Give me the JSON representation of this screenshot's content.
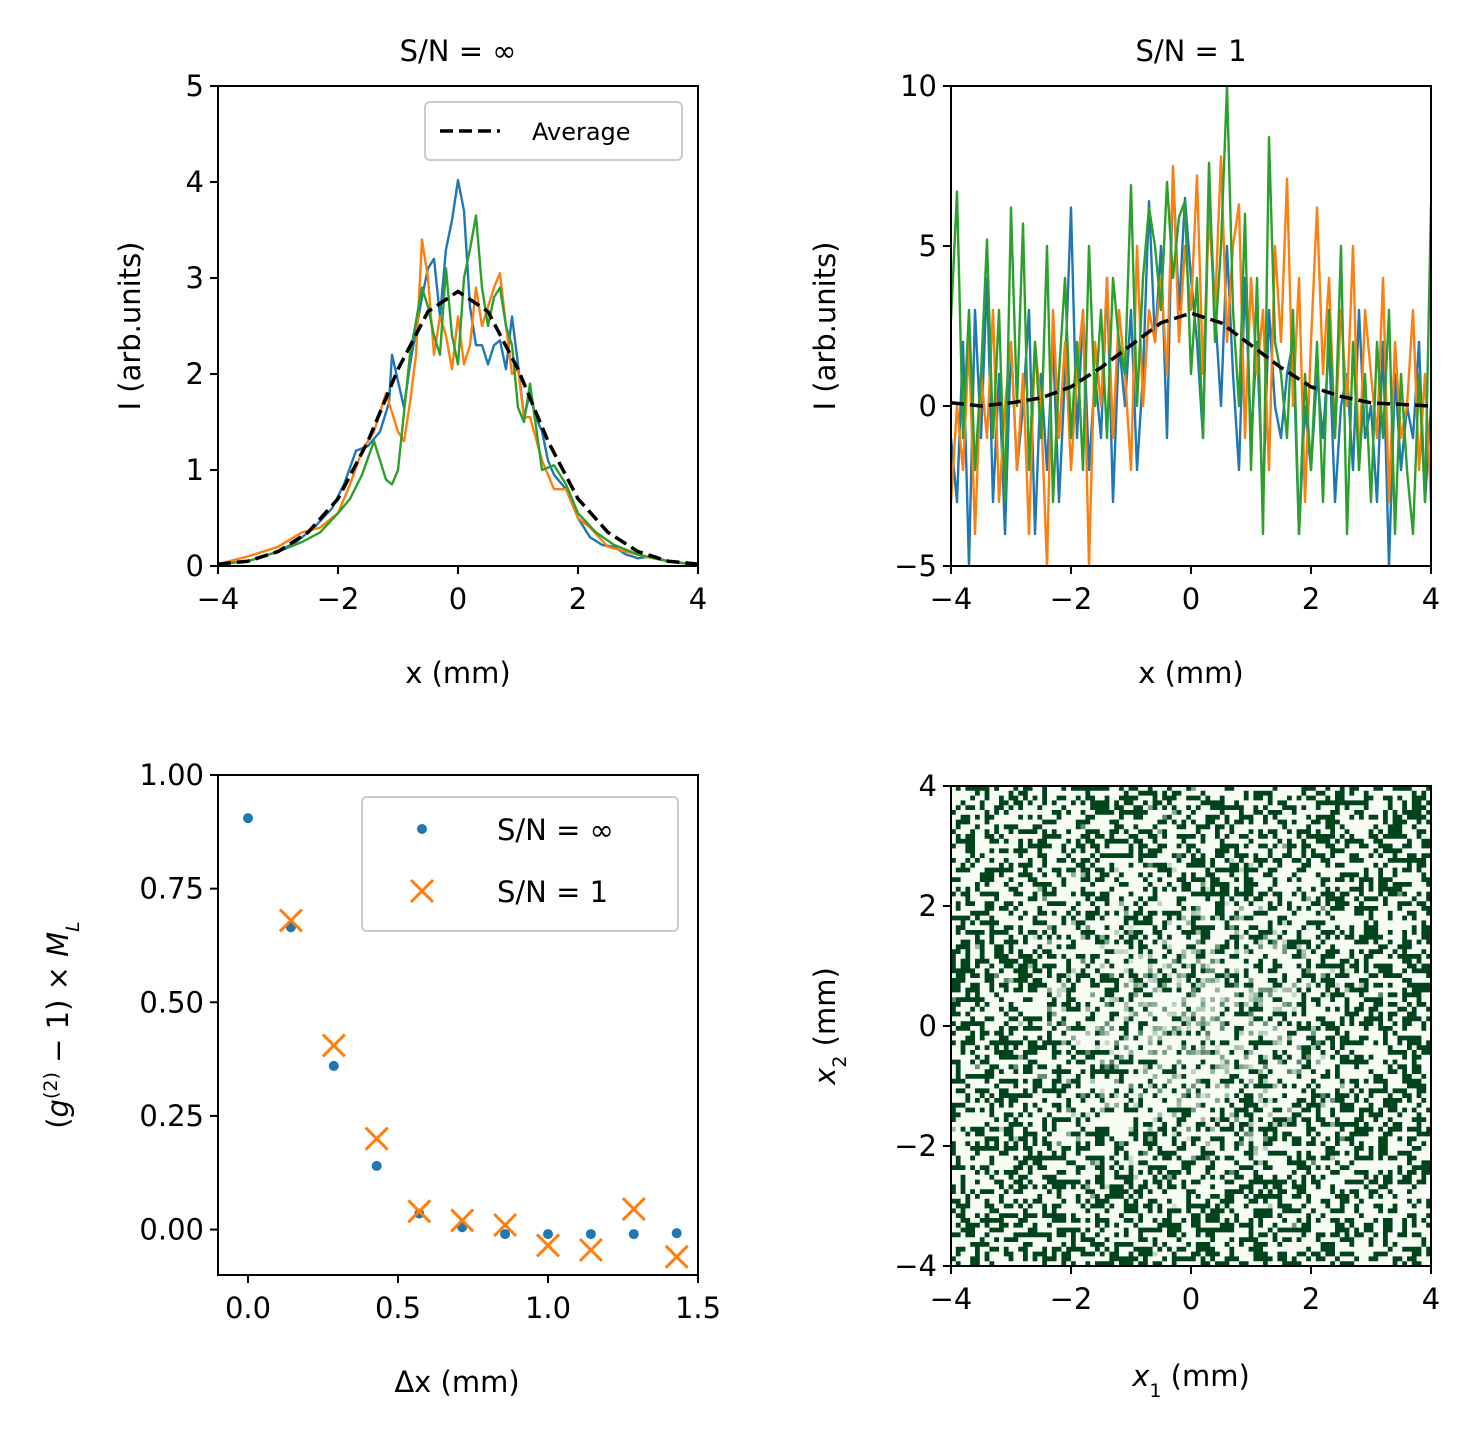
{
  "chart_data": [
    {
      "type": "line",
      "title": "S/N = ∞",
      "xlabel": "x (mm)",
      "ylabel": "I (arb.units)",
      "xlim": [
        -4,
        4
      ],
      "ylim": [
        0,
        5
      ],
      "xticks": [
        -4,
        -2,
        0,
        2,
        4
      ],
      "yticks": [
        0,
        1,
        2,
        3,
        4,
        5
      ],
      "legend": {
        "placement": "top-right",
        "entries": [
          "Average"
        ]
      },
      "series": [
        {
          "color": "#1f77b4",
          "x": [
            -4,
            -3.5,
            -3,
            -2.7,
            -2.4,
            -2.1,
            -1.9,
            -1.7,
            -1.5,
            -1.3,
            -1.15,
            -1.1,
            -0.9,
            -0.8,
            -0.7,
            -0.6,
            -0.5,
            -0.4,
            -0.3,
            -0.2,
            -0.1,
            0,
            0.1,
            0.2,
            0.3,
            0.4,
            0.5,
            0.6,
            0.7,
            0.8,
            0.9,
            1.0,
            1.1,
            1.2,
            1.3,
            1.4,
            1.5,
            1.6,
            1.8,
            2.0,
            2.2,
            2.4,
            2.6,
            2.8,
            3.0,
            3.2,
            3.5,
            4.0
          ],
          "y": [
            0.02,
            0.05,
            0.15,
            0.25,
            0.4,
            0.6,
            0.85,
            1.2,
            1.25,
            1.4,
            1.7,
            2.2,
            1.65,
            2.1,
            2.45,
            2.8,
            3.1,
            3.2,
            2.6,
            3.3,
            3.6,
            4.02,
            3.7,
            2.7,
            2.3,
            2.3,
            2.1,
            2.3,
            2.35,
            2.05,
            2.6,
            2.1,
            1.55,
            1.8,
            1.55,
            1.4,
            1.1,
            0.95,
            0.8,
            0.5,
            0.3,
            0.22,
            0.2,
            0.12,
            0.08,
            0.1,
            0.05,
            0.01
          ]
        },
        {
          "color": "#ff7f0e",
          "x": [
            -4,
            -3.5,
            -3,
            -2.6,
            -2.3,
            -2.0,
            -1.8,
            -1.6,
            -1.4,
            -1.2,
            -1.0,
            -0.9,
            -0.8,
            -0.7,
            -0.6,
            -0.5,
            -0.4,
            -0.3,
            -0.2,
            -0.1,
            0,
            0.1,
            0.2,
            0.3,
            0.4,
            0.5,
            0.6,
            0.7,
            0.8,
            0.9,
            1.0,
            1.1,
            1.2,
            1.4,
            1.6,
            1.8,
            2.0,
            2.2,
            2.5,
            2.8,
            3.1,
            3.5,
            4.0
          ],
          "y": [
            0.02,
            0.1,
            0.2,
            0.35,
            0.4,
            0.55,
            0.85,
            1.2,
            1.4,
            1.8,
            1.4,
            1.3,
            1.7,
            2.2,
            3.4,
            3.0,
            2.2,
            2.6,
            2.4,
            2.05,
            2.6,
            2.1,
            2.3,
            2.9,
            2.5,
            2.7,
            2.9,
            3.05,
            2.5,
            2.0,
            2.05,
            1.55,
            1.55,
            1.1,
            0.8,
            0.8,
            0.5,
            0.4,
            0.2,
            0.15,
            0.1,
            0.05,
            0.01
          ]
        },
        {
          "color": "#2ca02c",
          "x": [
            -4,
            -3.5,
            -3,
            -2.6,
            -2.3,
            -2.0,
            -1.8,
            -1.6,
            -1.4,
            -1.2,
            -1.1,
            -1.0,
            -0.9,
            -0.8,
            -0.7,
            -0.6,
            -0.5,
            -0.4,
            -0.3,
            -0.2,
            -0.1,
            0,
            0.1,
            0.2,
            0.3,
            0.4,
            0.5,
            0.6,
            0.7,
            0.8,
            0.9,
            1.0,
            1.1,
            1.2,
            1.4,
            1.6,
            1.8,
            2.0,
            2.3,
            2.6,
            3.0,
            3.5,
            4.0
          ],
          "y": [
            0.02,
            0.05,
            0.15,
            0.25,
            0.35,
            0.55,
            0.7,
            0.95,
            1.3,
            0.9,
            0.85,
            1.0,
            1.6,
            2.2,
            2.55,
            2.9,
            2.7,
            2.4,
            2.2,
            3.1,
            2.4,
            2.1,
            3.0,
            3.3,
            3.65,
            2.9,
            2.5,
            2.8,
            2.9,
            2.5,
            2.3,
            1.65,
            1.5,
            1.9,
            1.0,
            1.05,
            0.85,
            0.55,
            0.35,
            0.22,
            0.12,
            0.05,
            0.01
          ]
        },
        {
          "name": "Average",
          "color": "#000000",
          "dashed": true,
          "x": [
            -4,
            -3.5,
            -3,
            -2.5,
            -2,
            -1.5,
            -1,
            -0.5,
            0,
            0.5,
            1,
            1.5,
            2,
            2.5,
            3,
            3.5,
            4
          ],
          "y": [
            0.02,
            0.05,
            0.15,
            0.35,
            0.7,
            1.3,
            2.05,
            2.65,
            2.86,
            2.65,
            2.05,
            1.3,
            0.7,
            0.35,
            0.15,
            0.05,
            0.02
          ]
        }
      ]
    },
    {
      "type": "line",
      "title": "S/N = 1",
      "xlabel": "x (mm)",
      "ylabel": "I  (arb.units)",
      "xlim": [
        -4,
        4
      ],
      "ylim": [
        -5,
        10
      ],
      "xticks": [
        -4,
        -2,
        0,
        2,
        4
      ],
      "yticks": [
        -5,
        0,
        5,
        10
      ],
      "series": [
        {
          "color": "#1f77b4",
          "x": [
            -4,
            -3.9,
            -3.8,
            -3.7,
            -3.6,
            -3.5,
            -3.4,
            -3.3,
            -3.2,
            -3.1,
            -3.0,
            -2.9,
            -2.8,
            -2.7,
            -2.6,
            -2.5,
            -2.4,
            -2.3,
            -2.2,
            -2.1,
            -2.0,
            -1.9,
            -1.8,
            -1.7,
            -1.6,
            -1.5,
            -1.4,
            -1.3,
            -1.2,
            -1.1,
            -1.0,
            -0.9,
            -0.8,
            -0.7,
            -0.6,
            -0.5,
            -0.4,
            -0.3,
            -0.2,
            -0.1,
            0,
            0.1,
            0.2,
            0.3,
            0.4,
            0.5,
            0.6,
            0.7,
            0.8,
            0.9,
            1.0,
            1.1,
            1.2,
            1.3,
            1.4,
            1.5,
            1.6,
            1.7,
            1.8,
            1.9,
            2.0,
            2.1,
            2.2,
            2.3,
            2.4,
            2.5,
            2.6,
            2.7,
            2.8,
            2.9,
            3.0,
            3.1,
            3.2,
            3.3,
            3.4,
            3.5,
            3.6,
            3.7,
            3.8,
            3.9,
            4.0
          ],
          "y": [
            -1,
            -3,
            2,
            -5,
            3,
            -1,
            4,
            -3,
            1,
            -4,
            2,
            -2,
            0,
            3,
            -4,
            1,
            -2,
            2,
            -3,
            1,
            6.2,
            -1,
            3,
            -2,
            1,
            -1,
            4,
            -3,
            2,
            0,
            3,
            -2,
            1,
            6.4,
            2,
            5,
            -1,
            7.4,
            3,
            6.5,
            4,
            2,
            -1,
            6.8,
            3,
            0,
            5,
            1,
            -2,
            4,
            -1,
            2,
            -3,
            3,
            0,
            -1,
            1,
            2,
            -4,
            0,
            -2,
            1,
            -1,
            2,
            -3,
            0,
            1,
            -2,
            3,
            -1,
            0,
            -3,
            2,
            -5,
            1,
            -2,
            0,
            -1,
            2,
            -3,
            0
          ]
        },
        {
          "color": "#ff7f0e",
          "x": [
            -4,
            -3.9,
            -3.8,
            -3.7,
            -3.6,
            -3.5,
            -3.4,
            -3.3,
            -3.2,
            -3.1,
            -3.0,
            -2.9,
            -2.8,
            -2.7,
            -2.6,
            -2.5,
            -2.4,
            -2.3,
            -2.2,
            -2.1,
            -2.0,
            -1.9,
            -1.8,
            -1.7,
            -1.6,
            -1.5,
            -1.4,
            -1.3,
            -1.2,
            -1.1,
            -1.0,
            -0.9,
            -0.8,
            -0.7,
            -0.6,
            -0.5,
            -0.4,
            -0.3,
            -0.2,
            -0.1,
            0,
            0.1,
            0.2,
            0.3,
            0.4,
            0.5,
            0.6,
            0.7,
            0.8,
            0.9,
            1.0,
            1.1,
            1.2,
            1.3,
            1.4,
            1.5,
            1.6,
            1.7,
            1.8,
            1.9,
            2.0,
            2.1,
            2.2,
            2.3,
            2.4,
            2.5,
            2.6,
            2.7,
            2.8,
            2.9,
            3.0,
            3.1,
            3.2,
            3.3,
            3.4,
            3.5,
            3.6,
            3.7,
            3.8,
            3.9,
            4.0
          ],
          "y": [
            -3,
            0,
            -2,
            2,
            -4,
            1,
            -1,
            3,
            -3,
            0,
            2,
            -2,
            1,
            -4,
            2,
            0,
            -5,
            3,
            -1,
            2,
            -2,
            1,
            3,
            -5,
            2,
            0,
            4,
            -1,
            3,
            1,
            -2,
            5,
            0,
            3,
            2,
            4,
            1,
            7.5,
            2,
            5,
            3,
            7.2,
            1,
            6,
            3,
            7.8,
            2,
            5,
            6.3,
            -1,
            4,
            1,
            3,
            -2,
            5,
            2,
            7.1,
            0,
            4,
            -3,
            2,
            6.2,
            1,
            4,
            -1,
            3,
            0,
            5,
            -2,
            3,
            1,
            -1,
            4,
            -3,
            2,
            -1,
            0,
            3,
            -2,
            1,
            -3
          ]
        },
        {
          "color": "#2ca02c",
          "x": [
            -4,
            -3.9,
            -3.8,
            -3.7,
            -3.6,
            -3.5,
            -3.4,
            -3.3,
            -3.2,
            -3.1,
            -3.0,
            -2.9,
            -2.8,
            -2.7,
            -2.6,
            -2.5,
            -2.4,
            -2.3,
            -2.2,
            -2.1,
            -2.0,
            -1.9,
            -1.8,
            -1.7,
            -1.6,
            -1.5,
            -1.4,
            -1.3,
            -1.2,
            -1.1,
            -1.0,
            -0.9,
            -0.8,
            -0.7,
            -0.6,
            -0.5,
            -0.4,
            -0.3,
            -0.2,
            -0.1,
            0,
            0.1,
            0.2,
            0.3,
            0.4,
            0.5,
            0.6,
            0.7,
            0.8,
            0.9,
            1.0,
            1.1,
            1.2,
            1.3,
            1.4,
            1.5,
            1.6,
            1.7,
            1.8,
            1.9,
            2.0,
            2.1,
            2.2,
            2.3,
            2.4,
            2.5,
            2.6,
            2.7,
            2.8,
            2.9,
            3.0,
            3.1,
            3.2,
            3.3,
            3.4,
            3.5,
            3.6,
            3.7,
            3.8,
            3.9,
            4.0
          ],
          "y": [
            2.7,
            6.7,
            -1,
            3,
            -2,
            1,
            5.2,
            -1,
            3,
            -3,
            6.2,
            0,
            5.7,
            -2,
            2,
            -1,
            5,
            -3,
            1,
            4,
            -1,
            2,
            -2,
            5,
            0,
            3,
            -1,
            4,
            2,
            1,
            6.9,
            0,
            4,
            6.2,
            5,
            3,
            7,
            4,
            5.9,
            6.4,
            1,
            4,
            -1,
            7.6,
            2,
            5,
            10,
            3,
            0,
            6,
            -2,
            4,
            -4,
            8.4,
            2,
            1,
            -1,
            3,
            -4,
            1,
            -2,
            2,
            -3,
            3,
            -1,
            5,
            -4,
            2,
            -2,
            1,
            -3,
            2,
            -1,
            3,
            -4,
            1,
            -2,
            -4,
            1,
            -3,
            6.3
          ]
        },
        {
          "name": "Average",
          "color": "#000000",
          "dashed": true,
          "x": [
            -4,
            -3.5,
            -3,
            -2.5,
            -2,
            -1.5,
            -1,
            -0.5,
            0,
            0.5,
            1,
            1.5,
            2,
            2.5,
            3,
            3.5,
            4
          ],
          "y": [
            0.1,
            0.0,
            0.1,
            0.25,
            0.6,
            1.2,
            1.9,
            2.6,
            2.9,
            2.6,
            1.9,
            1.2,
            0.6,
            0.3,
            0.1,
            0.05,
            0.0
          ]
        }
      ]
    },
    {
      "type": "scatter",
      "title": "",
      "xlabel": "Δx (mm)",
      "ylabel": "(g(2) − 1) × ML",
      "xlim": [
        -0.1,
        1.5
      ],
      "ylim": [
        -0.1,
        1.0
      ],
      "xticks": [
        "0.0",
        "0.5",
        "1.0",
        "1.5"
      ],
      "yticks": [
        "0.00",
        "0.25",
        "0.50",
        "0.75",
        "1.00"
      ],
      "legend": {
        "placement": "top-right",
        "entries": [
          "S/N = ∞",
          "S/N = 1"
        ]
      },
      "series": [
        {
          "name": "S/N = ∞",
          "marker": "dot",
          "color": "#1f77b4",
          "x": [
            0,
            0.143,
            0.286,
            0.429,
            0.571,
            0.714,
            0.857,
            1.0,
            1.143,
            1.286,
            1.429
          ],
          "y": [
            0.905,
            0.665,
            0.36,
            0.14,
            0.035,
            0.005,
            -0.01,
            -0.01,
            -0.01,
            -0.01,
            -0.008
          ]
        },
        {
          "name": "S/N = 1",
          "marker": "x",
          "color": "#ff7f0e",
          "x": [
            0.143,
            0.286,
            0.429,
            0.571,
            0.714,
            0.857,
            1.0,
            1.143,
            1.286,
            1.429
          ],
          "y": [
            0.68,
            0.405,
            0.2,
            0.04,
            0.02,
            0.01,
            -0.035,
            -0.045,
            0.045,
            -0.06
          ]
        }
      ]
    },
    {
      "type": "heatmap",
      "title": "",
      "xlabel": "x1 (mm)",
      "ylabel": "x2 (mm)",
      "xlim": [
        -4,
        4
      ],
      "ylim": [
        -4,
        4
      ],
      "xticks": [
        -4,
        -2,
        0,
        2,
        4
      ],
      "yticks": [
        -4,
        -2,
        0,
        2,
        4
      ],
      "colormap": [
        "#f7fcf5",
        "#00441b"
      ],
      "grid_size": 100
    }
  ]
}
